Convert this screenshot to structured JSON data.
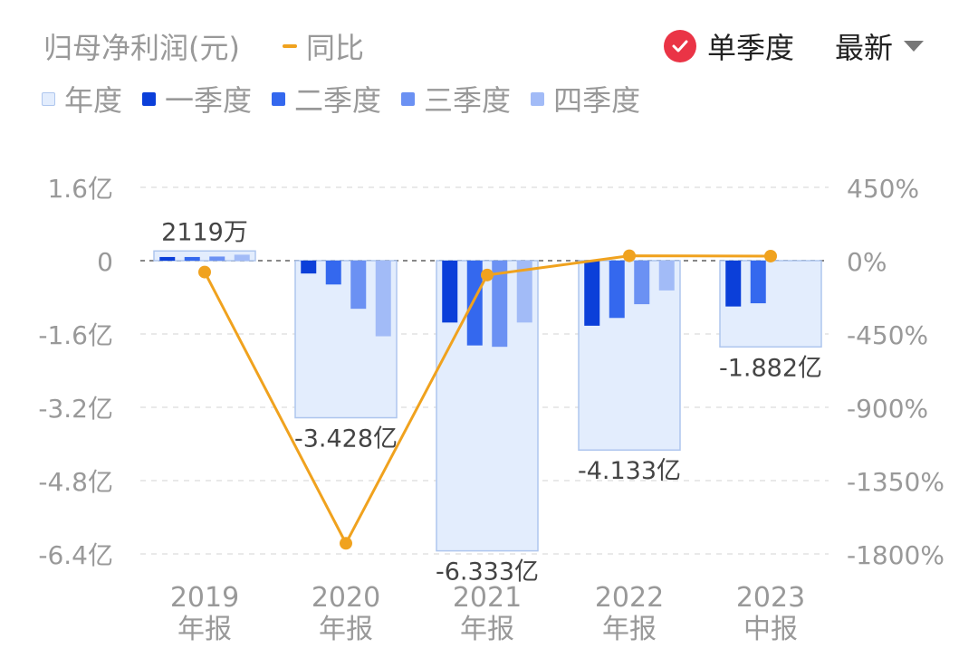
{
  "header": {
    "title": "归母净利润(元)",
    "yoy_label": "同比",
    "single_quarter_label": "单季度",
    "latest_label": "最新"
  },
  "colors": {
    "annual": "#e3edfd",
    "annual_border": "#aec6ee",
    "q1": "#0b3fd9",
    "q2": "#3468ee",
    "q3": "#6b91f3",
    "q4": "#a2bbf7",
    "yoy_line": "#f0a21e",
    "check": "#ea3446"
  },
  "chart_data": {
    "type": "bar",
    "categories": [
      [
        "2019",
        "年报"
      ],
      [
        "2020",
        "年报"
      ],
      [
        "2021",
        "年报"
      ],
      [
        "2022",
        "年报"
      ],
      [
        "2023",
        "中报"
      ]
    ],
    "series": [
      {
        "name": "年度",
        "values": [
          0.2119,
          -3.428,
          -6.333,
          -4.133,
          -1.882
        ]
      },
      {
        "name": "一季度",
        "values": [
          0.08,
          -0.28,
          -1.35,
          -1.42,
          -1.0
        ]
      },
      {
        "name": "二季度",
        "values": [
          0.08,
          -0.52,
          -1.85,
          -1.25,
          -0.93
        ]
      },
      {
        "name": "三季度",
        "values": [
          0.09,
          -1.05,
          -1.88,
          -0.95,
          null
        ]
      },
      {
        "name": "四季度",
        "values": [
          0.13,
          -1.65,
          -1.35,
          -0.65,
          null
        ]
      }
    ],
    "yoy": {
      "name": "同比",
      "values": [
        -70,
        -1735,
        -88,
        30,
        28
      ]
    },
    "annual_labels": [
      "2119万",
      "-3.428亿",
      "-6.333亿",
      "-4.133亿",
      "-1.882亿"
    ],
    "y_left": {
      "min": -6.4,
      "max": 1.6,
      "ticks": [
        "1.6亿",
        "0",
        "-1.6亿",
        "-3.2亿",
        "-4.8亿",
        "-6.4亿"
      ],
      "tick_values": [
        1.6,
        0,
        -1.6,
        -3.2,
        -4.8,
        -6.4
      ]
    },
    "y_right": {
      "min": -1800,
      "max": 450,
      "ticks": [
        "450%",
        "0%",
        "-450%",
        "-900%",
        "-1350%",
        "-1800%"
      ],
      "tick_values": [
        450,
        0,
        -450,
        -900,
        -1350,
        -1800
      ]
    },
    "grid": "dashed horizontal",
    "legend_position": "top-left"
  }
}
